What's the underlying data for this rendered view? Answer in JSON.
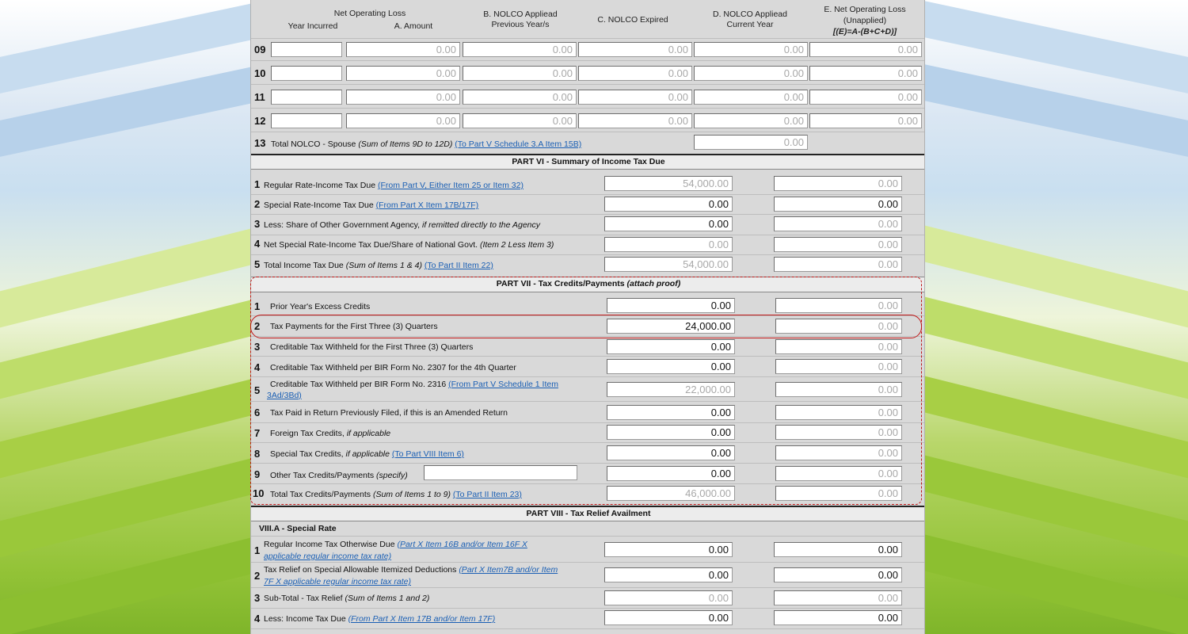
{
  "nolco_header": {
    "net_operating_loss": "Net Operating Loss",
    "year_incurred": "Year Incurred",
    "amount": "A. Amount",
    "col_b_line1": "B. NOLCO Appliead",
    "col_b_line2": "Previous Year/s",
    "col_c": "C. NOLCO Expired",
    "col_d_line1": "D. NOLCO Appliead",
    "col_d_line2": "Current Year",
    "col_e_line1": "E. Net Operating Loss",
    "col_e_line2": "(Unapplied)",
    "col_e_line3": "[(E)=A-(B+C+D)]"
  },
  "nolco_rows": [
    {
      "num": "09",
      "year": "",
      "a": "0.00",
      "b": "0.00",
      "c": "0.00",
      "d": "0.00",
      "e": "0.00"
    },
    {
      "num": "10",
      "year": "",
      "a": "0.00",
      "b": "0.00",
      "c": "0.00",
      "d": "0.00",
      "e": "0.00"
    },
    {
      "num": "11",
      "year": "",
      "a": "0.00",
      "b": "0.00",
      "c": "0.00",
      "d": "0.00",
      "e": "0.00"
    },
    {
      "num": "12",
      "year": "",
      "a": "0.00",
      "b": "0.00",
      "c": "0.00",
      "d": "0.00",
      "e": "0.00"
    }
  ],
  "nolco_total": {
    "num": "13",
    "label": "Total NOLCO - Spouse",
    "note": "(Sum of Items 9D to 12D)",
    "link": "(To Part V Schedule 3.A Item 15B)",
    "value": "0.00"
  },
  "part6": {
    "title": "PART VI - Summary of Income Tax Due",
    "rows": [
      {
        "num": "1",
        "label": "Regular Rate-Income Tax Due",
        "note": "",
        "link": "(From Part V, Either Item 25 or Item 32)",
        "v1": "54,000.00",
        "v2": "0.00"
      },
      {
        "num": "2",
        "label": "Special Rate-Income Tax Due",
        "note": "",
        "link": "(From Part X Item 17B/17F)",
        "v1": "0.00",
        "v2": "0.00"
      },
      {
        "num": "3",
        "label": "Less: Share of Other Government Agency,",
        "note": "if remitted directly to the Agency",
        "link": "",
        "v1": "0.00",
        "v2": "0.00"
      },
      {
        "num": "4",
        "label": "Net Special Rate-Income Tax Due/Share of National Govt.",
        "note": "(Item 2 Less Item 3)",
        "link": "",
        "v1": "0.00",
        "v2": "0.00"
      },
      {
        "num": "5",
        "label": "Total Income Tax Due",
        "note": "(Sum of Items 1 & 4)",
        "link": "(To Part II Item 22)",
        "v1": "54,000.00",
        "v2": "0.00"
      }
    ]
  },
  "part7": {
    "title": "PART VII - Tax Credits/Payments",
    "title_note": "(attach proof)",
    "rows": [
      {
        "num": "1",
        "label": "Prior Year's Excess Credits",
        "note": "",
        "link": "",
        "v1": "0.00",
        "v2": "0.00"
      },
      {
        "num": "2",
        "label": "Tax Payments for the First Three (3) Quarters",
        "note": "",
        "link": "",
        "v1": "24,000.00",
        "v2": "0.00"
      },
      {
        "num": "3",
        "label": "Creditable Tax Withheld for the First Three (3) Quarters",
        "note": "",
        "link": "",
        "v1": "0.00",
        "v2": "0.00"
      },
      {
        "num": "4",
        "label": "Creditable Tax Withheld per BIR Form No. 2307 for the 4th Quarter",
        "note": "",
        "link": "",
        "v1": "0.00",
        "v2": "0.00"
      },
      {
        "num": "5",
        "label": "Creditable Tax Withheld per BIR Form No. 2316",
        "note": "",
        "link": "(From Part V Schedule 1 Item",
        "link2": "3Ad/3Bd)",
        "v1": "22,000.00",
        "v2": "0.00"
      },
      {
        "num": "6",
        "label": "Tax Paid in Return Previously Filed, if this is an Amended Return",
        "note": "",
        "link": "",
        "v1": "0.00",
        "v2": "0.00"
      },
      {
        "num": "7",
        "label": "Foreign Tax Credits,",
        "note": "if applicable",
        "link": "",
        "v1": "0.00",
        "v2": "0.00"
      },
      {
        "num": "8",
        "label": "Special Tax Credits,",
        "note": "if applicable",
        "link": "(To Part VIII Item 6)",
        "v1": "0.00",
        "v2": "0.00"
      },
      {
        "num": "9",
        "label": "Other Tax Credits/Payments",
        "note": "(specify)",
        "link": "",
        "specify": "",
        "v1": "0.00",
        "v2": "0.00"
      },
      {
        "num": "10",
        "label": "Total Tax Credits/Payments",
        "note": "(Sum of Items 1 to 9)",
        "link": "(To Part II Item 23)",
        "v1": "46,000.00",
        "v2": "0.00"
      }
    ]
  },
  "part8": {
    "title": "PART VIII - Tax Relief Availment",
    "subtitle": "VIII.A - Special Rate",
    "rows": [
      {
        "num": "1",
        "label": "Regular Income Tax Otherwise Due",
        "link": "(Part X Item 16B and/or Item 16F X",
        "link2": "applicable regular income tax rate)",
        "v1": "0.00",
        "v2": "0.00"
      },
      {
        "num": "2",
        "label": "Tax Relief on Special Allowable Itemized Deductions",
        "link": "(Part X Item7B and/or Item",
        "link2": "7F X applicable regular income tax rate)",
        "v1": "0.00",
        "v2": "0.00"
      },
      {
        "num": "3",
        "label": "Sub-Total - Tax Relief",
        "note": "(Sum of Items 1 and 2)",
        "link": "",
        "v1": "0.00",
        "v2": "0.00"
      },
      {
        "num": "4",
        "label": "Less: Income Tax Due",
        "link": "(From Part X Item 17B and/or Item 17F)",
        "v1": "0.00",
        "v2": "0.00"
      }
    ]
  }
}
